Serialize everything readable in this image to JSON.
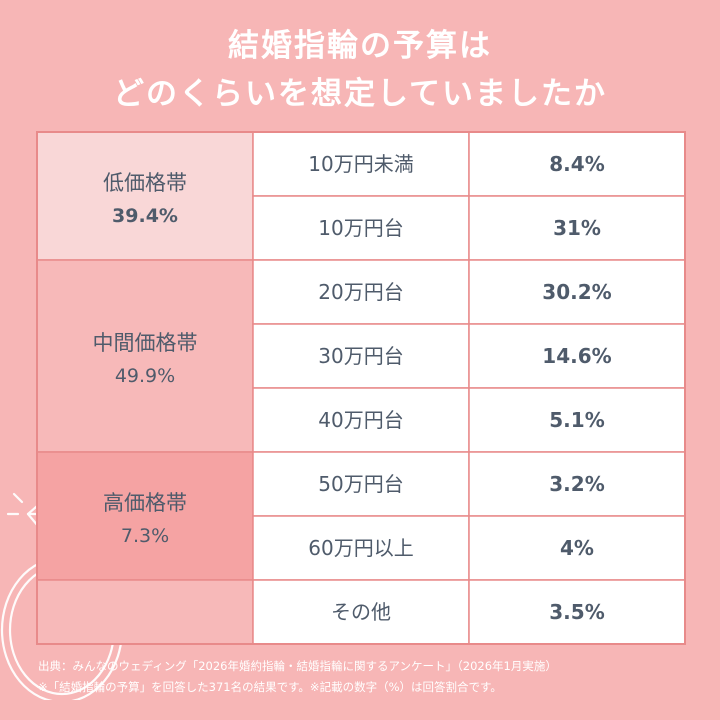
{
  "title_line1": "結婚指輪の予算は",
  "title_line2": "どのくらいを想定していましたか",
  "chart_data": {
    "type": "table",
    "groups": [
      {
        "name": "低価格帯",
        "percent": "39.4%",
        "fill": "#f9d7d7",
        "bold": true,
        "rows": [
          0,
          1
        ]
      },
      {
        "name": "中間価格帯",
        "percent": "49.9%",
        "fill": "#f7b9b9",
        "bold": false,
        "rows": [
          2,
          3,
          4
        ]
      },
      {
        "name": "高価格帯",
        "percent": "7.3%",
        "fill": "#f5a3a3",
        "bold": false,
        "rows": [
          5,
          6
        ]
      },
      {
        "name": "",
        "percent": "",
        "fill": "#f7b9b9",
        "bold": false,
        "rows": [
          7
        ]
      }
    ],
    "rows": [
      {
        "label": "10万円未満",
        "value": "8.4%"
      },
      {
        "label": "10万円台",
        "value": "31%"
      },
      {
        "label": "20万円台",
        "value": "30.2%"
      },
      {
        "label": "30万円台",
        "value": "14.6%"
      },
      {
        "label": "40万円台",
        "value": "5.1%"
      },
      {
        "label": "50万円台",
        "value": "3.2%"
      },
      {
        "label": "60万円以上",
        "value": "4%"
      },
      {
        "label": "その他",
        "value": "3.5%"
      }
    ]
  },
  "footnote_line1": "出典：みんなのウェディング「2026年婚約指輪・結婚指輪に関するアンケート」（2026年1月実施）",
  "footnote_line2": "※「結婚指輪の予算」を回答した371名の結果です。※記載の数字（%）は回答割合です。",
  "colors": {
    "background": "#f7b6b6",
    "border": "#e88a8a",
    "text": "#4f5b6b",
    "white_cell": "#ffffff"
  },
  "decoration_icon": "diamond-ring-icon"
}
